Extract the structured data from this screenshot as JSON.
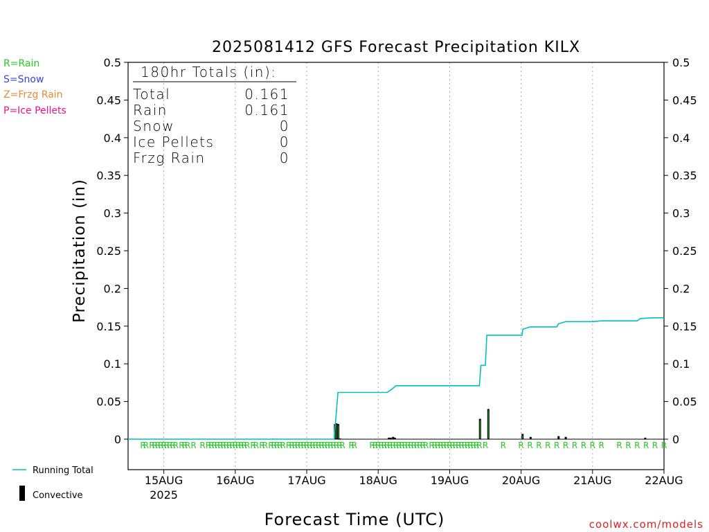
{
  "chart_data": {
    "type": "bar",
    "title": "2025081412 GFS Forecast Precipitation KILX",
    "xlabel": "Forecast Time (UTC)",
    "ylabel": "Precipitation (in)",
    "ylim": [
      0,
      0.5
    ],
    "y_ticks": [
      "0",
      "0.05",
      "0.1",
      "0.15",
      "0.2",
      "0.25",
      "0.3",
      "0.35",
      "0.4",
      "0.45",
      "0.5"
    ],
    "x_range_hours": [
      0,
      180
    ],
    "x_ticks": [
      {
        "h": 12,
        "label": "15AUG",
        "sub": "2025"
      },
      {
        "h": 36,
        "label": "16AUG",
        "sub": ""
      },
      {
        "h": 60,
        "label": "17AUG",
        "sub": ""
      },
      {
        "h": 84,
        "label": "18AUG",
        "sub": ""
      },
      {
        "h": 108,
        "label": "19AUG",
        "sub": ""
      },
      {
        "h": 132,
        "label": "20AUG",
        "sub": ""
      },
      {
        "h": 156,
        "label": "21AUG",
        "sub": ""
      },
      {
        "h": 180,
        "label": "22AUG",
        "sub": ""
      }
    ],
    "type_legend": [
      {
        "text": "R=Rain",
        "color": "#22cc22"
      },
      {
        "text": "S=Snow",
        "color": "#3344ee"
      },
      {
        "text": "Z=Frzg Rain",
        "color": "#ee8833"
      },
      {
        "text": "P=Ice Pellets",
        "color": "#ee1188"
      }
    ],
    "series_legend": [
      {
        "text": "Running Total",
        "color": "#00c0c0"
      },
      {
        "text": "Convective",
        "color": "#000000"
      }
    ],
    "totals": {
      "heading": "180hr Totals (in):",
      "rows": [
        {
          "label": "Total",
          "value": "0.161"
        },
        {
          "label": "Rain",
          "value": "0.161"
        },
        {
          "label": "Snow",
          "value": "0"
        },
        {
          "label": "Ice Pellets",
          "value": "0"
        },
        {
          "label": "Frzg Rain",
          "value": "0"
        }
      ]
    },
    "running_total": [
      [
        0,
        0
      ],
      [
        69.2,
        0
      ],
      [
        70.5,
        0.062
      ],
      [
        87,
        0.062
      ],
      [
        88.5,
        0.066
      ],
      [
        90,
        0.071
      ],
      [
        108,
        0.071
      ],
      [
        118,
        0.071
      ],
      [
        118.5,
        0.098
      ],
      [
        120,
        0.098
      ],
      [
        120.5,
        0.138
      ],
      [
        132.3,
        0.138
      ],
      [
        132.6,
        0.146
      ],
      [
        135,
        0.149
      ],
      [
        144,
        0.149
      ],
      [
        144.5,
        0.153
      ],
      [
        147,
        0.156
      ],
      [
        156,
        0.156
      ],
      [
        159,
        0.157
      ],
      [
        171,
        0.157
      ],
      [
        172,
        0.16
      ],
      [
        176,
        0.161
      ],
      [
        180,
        0.161
      ]
    ],
    "bars": [
      {
        "x": 69.5,
        "value": 0.02,
        "convective": true
      },
      {
        "x": 70.0,
        "value": 0.021,
        "convective": true
      },
      {
        "x": 70.6,
        "value": 0.02,
        "convective": true
      },
      {
        "x": 71.1,
        "value": 0.001,
        "convective": false
      },
      {
        "x": 87.6,
        "value": 0.002,
        "convective": false
      },
      {
        "x": 88.2,
        "value": 0.002,
        "convective": false
      },
      {
        "x": 89.0,
        "value": 0.003,
        "convective": false
      },
      {
        "x": 89.6,
        "value": 0.002,
        "convective": false
      },
      {
        "x": 118.2,
        "value": 0.027,
        "convective": true
      },
      {
        "x": 121.0,
        "value": 0.04,
        "convective": true
      },
      {
        "x": 132.5,
        "value": 0.007,
        "convective": true
      },
      {
        "x": 135.2,
        "value": 0.003,
        "convective": true
      },
      {
        "x": 144.6,
        "value": 0.004,
        "convective": true
      },
      {
        "x": 147.0,
        "value": 0.003,
        "convective": true
      },
      {
        "x": 173.7,
        "value": 0.002,
        "convective": true
      }
    ],
    "rain_marks_hours": [
      5,
      6,
      8,
      9,
      10,
      11,
      12,
      13,
      14,
      15,
      16,
      18,
      19,
      20,
      22,
      25,
      27,
      28,
      29,
      30,
      31,
      32,
      33,
      34,
      35,
      36,
      37,
      38,
      39,
      40,
      42,
      43,
      45,
      46,
      48,
      49,
      50,
      51,
      52,
      54,
      55,
      56,
      57,
      58,
      59,
      60,
      61,
      62,
      63,
      64,
      65,
      66,
      67,
      68,
      69,
      70,
      71,
      72,
      75,
      76,
      82,
      83,
      84,
      85,
      86,
      87,
      88,
      89,
      90,
      91,
      92,
      93,
      94,
      95,
      96,
      97,
      98,
      99,
      100,
      102,
      103,
      104,
      105,
      106,
      107,
      108,
      109,
      110,
      111,
      112,
      113,
      114,
      115,
      116,
      117,
      118,
      120,
      126,
      132,
      135,
      138,
      141,
      144,
      147,
      150,
      153,
      156,
      159,
      165,
      168,
      171,
      174,
      177,
      180
    ]
  },
  "watermark": "coolwx.com/models"
}
